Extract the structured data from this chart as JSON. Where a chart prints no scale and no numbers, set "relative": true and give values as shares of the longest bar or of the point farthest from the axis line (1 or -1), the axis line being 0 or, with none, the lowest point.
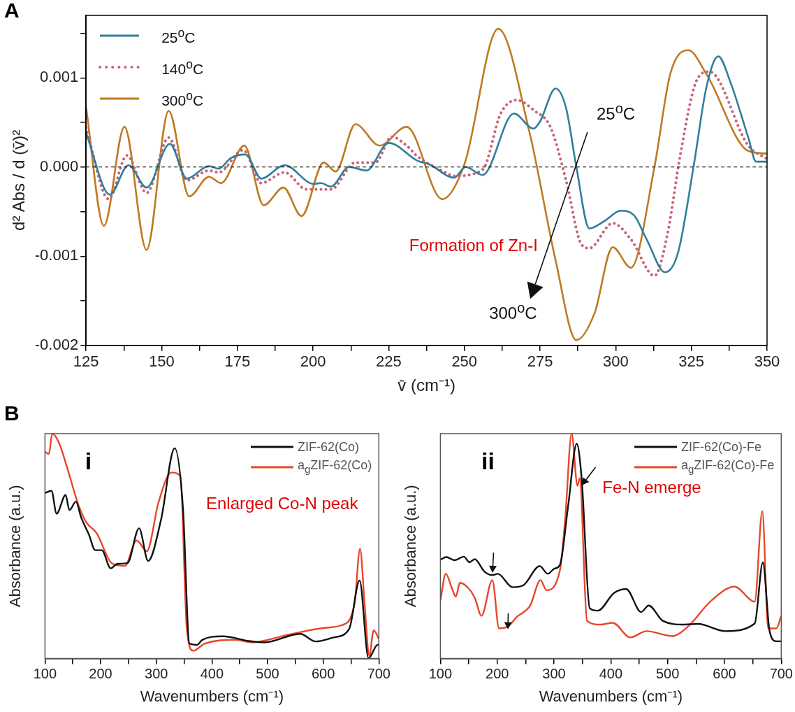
{
  "chart_data": [
    {
      "type": "line",
      "title": "A",
      "xlabel": "v̄ (cm⁻¹)",
      "ylabel": "d² Abs / d (v̄)²",
      "xlim": [
        125,
        350
      ],
      "ylim": [
        -0.002,
        0.0017
      ],
      "xticks": [
        125,
        {
          "value": 137.5,
          "label": null
        },
        150,
        {
          "value": 162.5,
          "label": null
        },
        175,
        {
          "value": 187.5,
          "label": null
        },
        200,
        {
          "value": 212.5,
          "label": null
        },
        225,
        {
          "value": 237.5,
          "label": null
        },
        250,
        {
          "value": 262.5,
          "label": null
        },
        275,
        {
          "value": 287.5,
          "label": null
        },
        300,
        {
          "value": 312.5,
          "label": null
        },
        325,
        {
          "value": 337.5,
          "label": null
        },
        350
      ],
      "yticks": [
        -0.002,
        {
          "value": -0.0015,
          "label": null
        },
        -0.001,
        {
          "value": -0.0005,
          "label": null
        },
        {
          "value": 0,
          "label": "0.000"
        },
        {
          "value": 0.0005,
          "label": null
        },
        0.001,
        {
          "value": 0.0015,
          "label": null
        }
      ],
      "legend": "top left",
      "ref_lines": [
        {
          "axis": "y",
          "value": 0,
          "color": "#000000",
          "line_style": "dashed"
        }
      ],
      "annotations": [
        "25$^{o}$C",
        "300$^{o}$C",
        "Formation of Zn-I"
      ],
      "series": [
        {
          "name": "25$^{o}$C",
          "color": "#2f7f9b",
          "line_style": "solid",
          "x": [
            125,
            132.9,
            139,
            145,
            152.7,
            158.3,
            165.6,
            168.8,
            172.8,
            177.7,
            182.9,
            190.6,
            200.2,
            202.6,
            205.9,
            211.9,
            217.6,
            225,
            234.5,
            238.4,
            246.6,
            250.4,
            256,
            266.4,
            272.8,
            275,
            280.1,
            283.6,
            287,
            291.3,
            296.5,
            301.6,
            306,
            310.2,
            316.3,
            320.6,
            325.7,
            330,
            333.9,
            337.8,
            343.8,
            346.4,
            350
          ],
          "values": [
            0.00038,
            -0.00031,
            2e-05,
            -0.00023,
            0.00026,
            -0.00013,
            1e-05,
            -2e-05,
            0.0001,
            0.00014,
            -0.00013,
            2e-05,
            -0.00019,
            -0.00018,
            -0.00022,
            0,
            -4e-05,
            0.00027,
            7e-05,
            3e-05,
            -0.00012,
            0,
            -9e-05,
            0.0006,
            0.00043,
            0.00051,
            0.00088,
            0.00066,
            0,
            -0.00069,
            -0.0006,
            -0.00049,
            -0.00054,
            -0.00081,
            -0.00118,
            -0.00096,
            0,
            0.0009,
            0.00124,
            0.00096,
            0.00033,
            6e-05,
            6e-05
          ]
        },
        {
          "name": "140$^{o}$C",
          "color": "#c86476",
          "line_style": "dotted",
          "x": [
            125,
            132.5,
            138.5,
            145,
            152.3,
            158.3,
            165.6,
            168.8,
            176.9,
            182.9,
            190.6,
            197.8,
            205.9,
            214,
            220.6,
            226,
            230.9,
            234.5,
            243.1,
            246.6,
            256,
            262,
            267.2,
            273.2,
            278.4,
            283.6,
            288.7,
            291.3,
            299,
            305,
            312.8,
            317.1,
            321.4,
            326.6,
            330.9,
            343.8,
            350
          ],
          "values": [
            0.00044,
            -0.00036,
            0.00013,
            -0.00029,
            0.00033,
            -0.00015,
            -4e-05,
            -6e-05,
            0.00019,
            -0.00018,
            -6e-05,
            -0.00025,
            -0.00025,
            5e-05,
            5e-05,
            0.00034,
            0.00024,
            0.00012,
            -5e-05,
            -0.0001,
            -3e-05,
            0.0006,
            0.00075,
            0.00063,
            0.00045,
            -0.00015,
            -0.00087,
            -0.00091,
            -0.00063,
            -0.00081,
            -0.00122,
            -0.00075,
            0.00015,
            0.00096,
            0.00107,
            0.00024,
            9e-05
          ]
        },
        {
          "name": "300$^{o}$C",
          "color": "#c07a22",
          "line_style": "solid",
          "x": [
            125,
            130.9,
            137.7,
            145,
            152.3,
            159.1,
            165.6,
            169.6,
            177.3,
            183.7,
            190.2,
            196.2,
            203.5,
            207.5,
            214,
            222,
            230.9,
            242.7,
            250,
            261.2,
            271.5,
            280.1,
            287,
            293,
            299,
            305,
            312.8,
            318,
            324,
            330,
            343.8,
            350
          ],
          "values": [
            0.00067,
            -0.00066,
            0.00045,
            -0.00093,
            0.00063,
            -0.00033,
            -0.00011,
            -0.00018,
            0.00024,
            -0.00043,
            -0.00023,
            -0.00055,
            5e-05,
            -5e-05,
            0.00048,
            0.00024,
            0.00045,
            -0.00036,
            3e-05,
            0.00155,
            0.00039,
            -0.00104,
            -0.00194,
            -0.00164,
            -0.0009,
            -0.00113,
            0,
            0.00104,
            0.00131,
            0.00104,
            0.00018,
            0.00015
          ]
        }
      ]
    },
    {
      "type": "line",
      "title": "B",
      "subtitle": "i",
      "xlabel": "Wavenumbers (cm⁻¹)",
      "ylabel": "Absorbance (a.u.)",
      "relative": true,
      "xlim": [
        100,
        700
      ],
      "xticks": [
        100,
        {
          "value": 150,
          "label": null
        },
        200,
        {
          "value": 250,
          "label": null
        },
        300,
        {
          "value": 350,
          "label": null
        },
        400,
        {
          "value": 450,
          "label": null
        },
        500,
        {
          "value": 550,
          "label": null
        },
        600,
        {
          "value": 650,
          "label": null
        },
        700
      ],
      "legend": "top right",
      "annotations": [
        "Enlarged Co-N peak"
      ],
      "series": [
        {
          "name": "ZIF-62(Co)",
          "color": "#111111",
          "x": [
            100,
            111.6,
            120.9,
            137,
            144,
            155.6,
            164.9,
            178.8,
            190.4,
            202,
            218.2,
            229.8,
            248.3,
            269.1,
            285.4,
            308.5,
            333.1,
            347.9,
            359.5,
            373.4,
            382.7,
            419.7,
            466,
            493.9,
            558.7,
            586.5,
            618.9,
            646.7,
            665.3,
            681.5,
            697.7,
            700
          ],
          "values": [
            0.736,
            0.746,
            0.644,
            0.727,
            0.66,
            0.698,
            0.628,
            0.552,
            0.482,
            0.482,
            0.401,
            0.421,
            0.425,
            0.579,
            0.434,
            0.617,
            0.935,
            0.671,
            0.067,
            0.061,
            0.083,
            0.099,
            0.078,
            0.072,
            0.11,
            0.076,
            0.094,
            0.132,
            0.347,
            0.002,
            0.061,
            0.061
          ]
        },
        {
          "name": "a$_{g}$ZIF-62(Co)",
          "color": "#e8462a",
          "x": [
            100,
            107,
            113,
            125.5,
            141.7,
            160.2,
            174.1,
            192.7,
            220.5,
            243.7,
            264.5,
            283,
            303.9,
            327.1,
            343.3,
            354.9,
            366.5,
            387.3,
            442.9,
            470.7,
            535.5,
            605,
            632.9,
            656,
            666.2,
            674.5,
            682.8,
            690.7,
            700
          ],
          "values": [
            0.919,
            0.91,
            1,
            0.957,
            0.833,
            0.682,
            0.606,
            0.558,
            0.423,
            0.412,
            0.525,
            0.477,
            0.693,
            0.827,
            0.811,
            0.132,
            0.035,
            0.067,
            0.083,
            0.072,
            0.105,
            0.137,
            0.148,
            0.239,
            0.488,
            0.239,
            0.013,
            0.126,
            0.088
          ]
        }
      ]
    },
    {
      "type": "line",
      "subtitle": "ii",
      "xlabel": "Wavenumbers (cm⁻¹)",
      "ylabel": "Absorbance (a.u.)",
      "relative": true,
      "xlim": [
        100,
        700
      ],
      "xticks": [
        100,
        {
          "value": 150,
          "label": null
        },
        200,
        {
          "value": 250,
          "label": null
        },
        300,
        {
          "value": 350,
          "label": null
        },
        400,
        {
          "value": 450,
          "label": null
        },
        500,
        {
          "value": 550,
          "label": null
        },
        600,
        {
          "value": 650,
          "label": null
        },
        700
      ],
      "legend": "top right",
      "annotations": [
        "Fe-N emerge"
      ],
      "series": [
        {
          "name": "ZIF-62(Co)-Fe",
          "color": "#111111",
          "x": [
            100,
            110.5,
            124.8,
            141.4,
            151,
            160.5,
            177.1,
            191.4,
            201,
            227.1,
            246.2,
            274.8,
            289,
            301,
            310.5,
            324.8,
            340,
            348.6,
            362.9,
            377.1,
            405.7,
            427.1,
            453.3,
            466.7,
            491.4,
            529.5,
            553.3,
            601,
            653.3,
            667.6,
            679.5,
            691.4,
            700
          ],
          "values": [
            0.439,
            0.451,
            0.437,
            0.453,
            0.428,
            0.442,
            0.388,
            0.371,
            0.377,
            0.317,
            0.326,
            0.411,
            0.377,
            0.4,
            0.417,
            0.677,
            0.955,
            0.802,
            0.224,
            0.213,
            0.292,
            0.309,
            0.207,
            0.236,
            0.168,
            0.151,
            0.154,
            0.122,
            0.156,
            0.428,
            0.122,
            0.077,
            0.077
          ]
        },
        {
          "name": "a$_{g}$ZIF-62(Co)-Fe",
          "color": "#e8462a",
          "x": [
            100,
            109.5,
            120,
            127.1,
            134.3,
            148.6,
            160.5,
            172.4,
            191.4,
            203.3,
            220,
            234.3,
            258.1,
            276.2,
            286.7,
            310.5,
            320,
            331,
            341.4,
            345.2,
            358.1,
            381.9,
            403.3,
            434.3,
            462.9,
            508.1,
            534.3,
            577.1,
            617.6,
            653.3,
            666.7,
            677.1,
            691.4,
            700
          ],
          "values": [
            0.258,
            0.377,
            0.315,
            0.275,
            0.337,
            0.315,
            0.27,
            0.19,
            0.349,
            0.134,
            0.145,
            0.185,
            0.236,
            0.349,
            0.304,
            0.394,
            0.632,
            1,
            0.768,
            0.802,
            0.168,
            0.151,
            0.159,
            0.094,
            0.122,
            0.1,
            0.139,
            0.258,
            0.32,
            0.253,
            0.655,
            0.134,
            0.134,
            0.19
          ]
        }
      ]
    }
  ]
}
